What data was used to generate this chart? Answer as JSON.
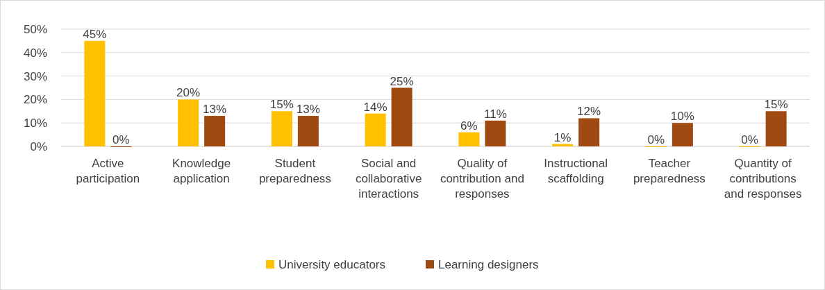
{
  "chart_data": {
    "type": "bar",
    "categories": [
      "Active participation",
      "Knowledge application",
      "Student preparedness",
      "Social and collaborative interactions",
      "Quality of contribution and responses",
      "Instructional scaffolding",
      "Teacher preparedness",
      "Quantity of contributions and responses"
    ],
    "series": [
      {
        "name": "University educators",
        "color": "#ffc000",
        "values": [
          45,
          20,
          15,
          14,
          6,
          1,
          0,
          0
        ],
        "value_labels": [
          "45%",
          "20%",
          "15%",
          "14%",
          "6%",
          "1%",
          "0%",
          "0%"
        ]
      },
      {
        "name": "Learning designers",
        "color": "#9e4a10",
        "values": [
          0,
          13,
          13,
          25,
          11,
          12,
          10,
          15
        ],
        "value_labels": [
          "0%",
          "13%",
          "13%",
          "25%",
          "11%",
          "12%",
          "10%",
          "15%"
        ]
      }
    ],
    "ylim": [
      0,
      50
    ],
    "yticks": [
      {
        "value": 0,
        "label": "0%"
      },
      {
        "value": 10,
        "label": "10%"
      },
      {
        "value": 20,
        "label": "20%"
      },
      {
        "value": 30,
        "label": "30%"
      },
      {
        "value": 40,
        "label": "40%"
      },
      {
        "value": 50,
        "label": "50%"
      }
    ],
    "grid": "y",
    "legend": "bottom"
  }
}
